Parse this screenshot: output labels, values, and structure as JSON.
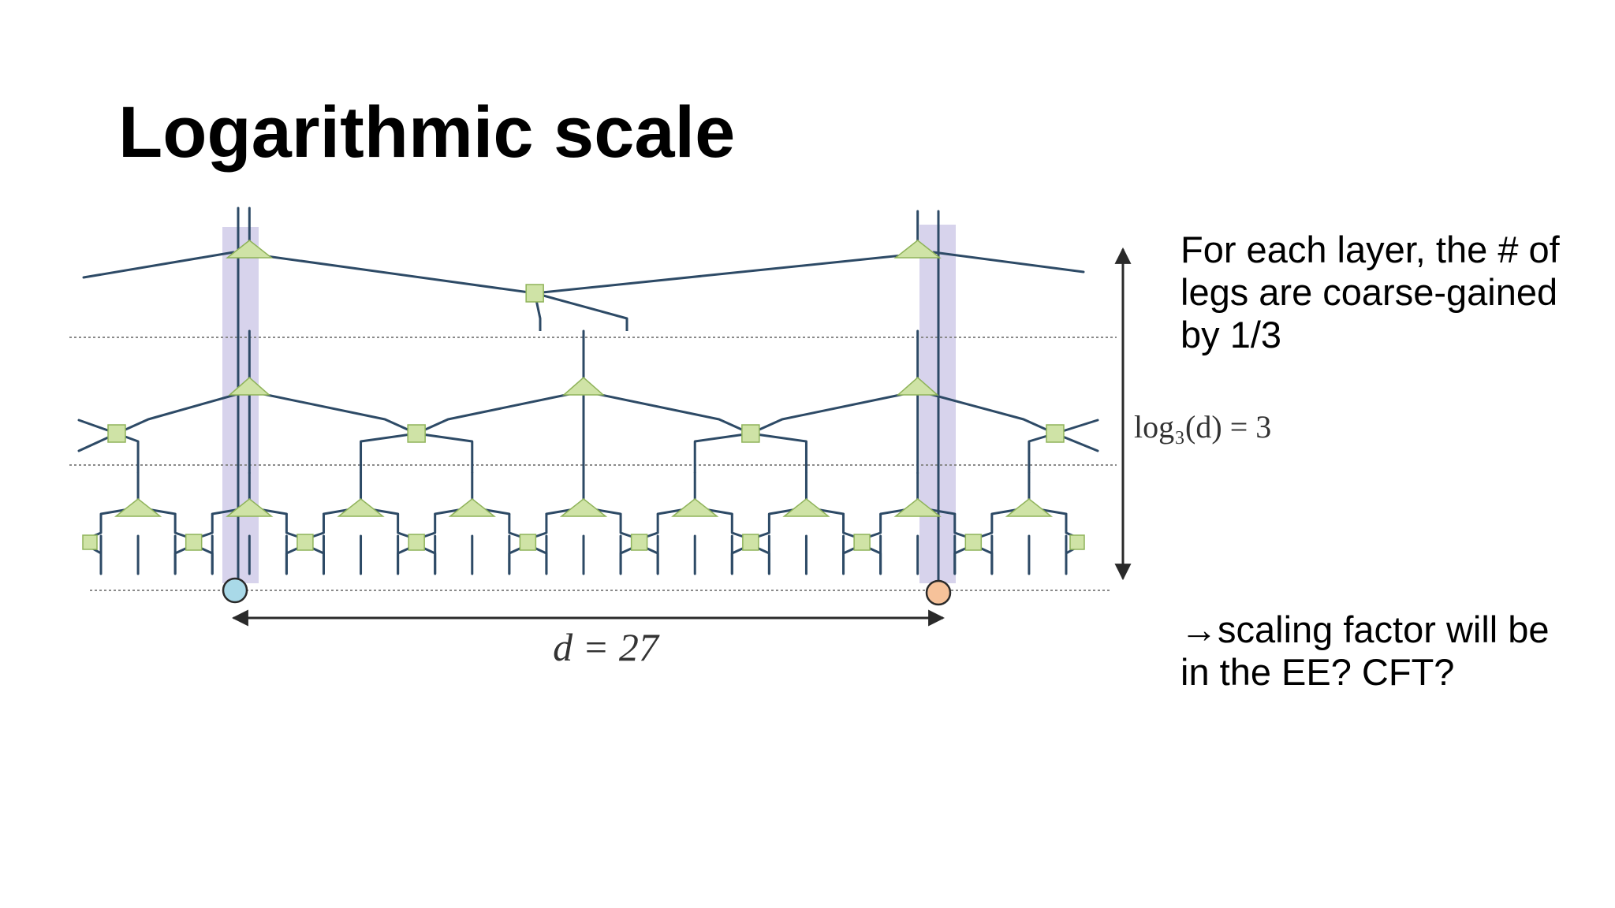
{
  "slide": {
    "title": "Logarithmic scale",
    "notes": [
      [
        "For each layer, the # of",
        "legs are coarse-gained",
        "by 1/3"
      ],
      [
        "→scaling factor will be",
        "in the EE? CFT?"
      ]
    ]
  },
  "diagram": {
    "distance_label": "d = 27",
    "depth_label": "log₃(d) = 3",
    "colors": {
      "line": "#2d4a66",
      "node_fill": "#cfe3a6",
      "node_stroke": "#8fb35a",
      "highlight": "#bdb5e0",
      "site_left": "#a9d9e8",
      "site_right": "#f6c29a",
      "dotted": "#8a8a8a"
    }
  }
}
